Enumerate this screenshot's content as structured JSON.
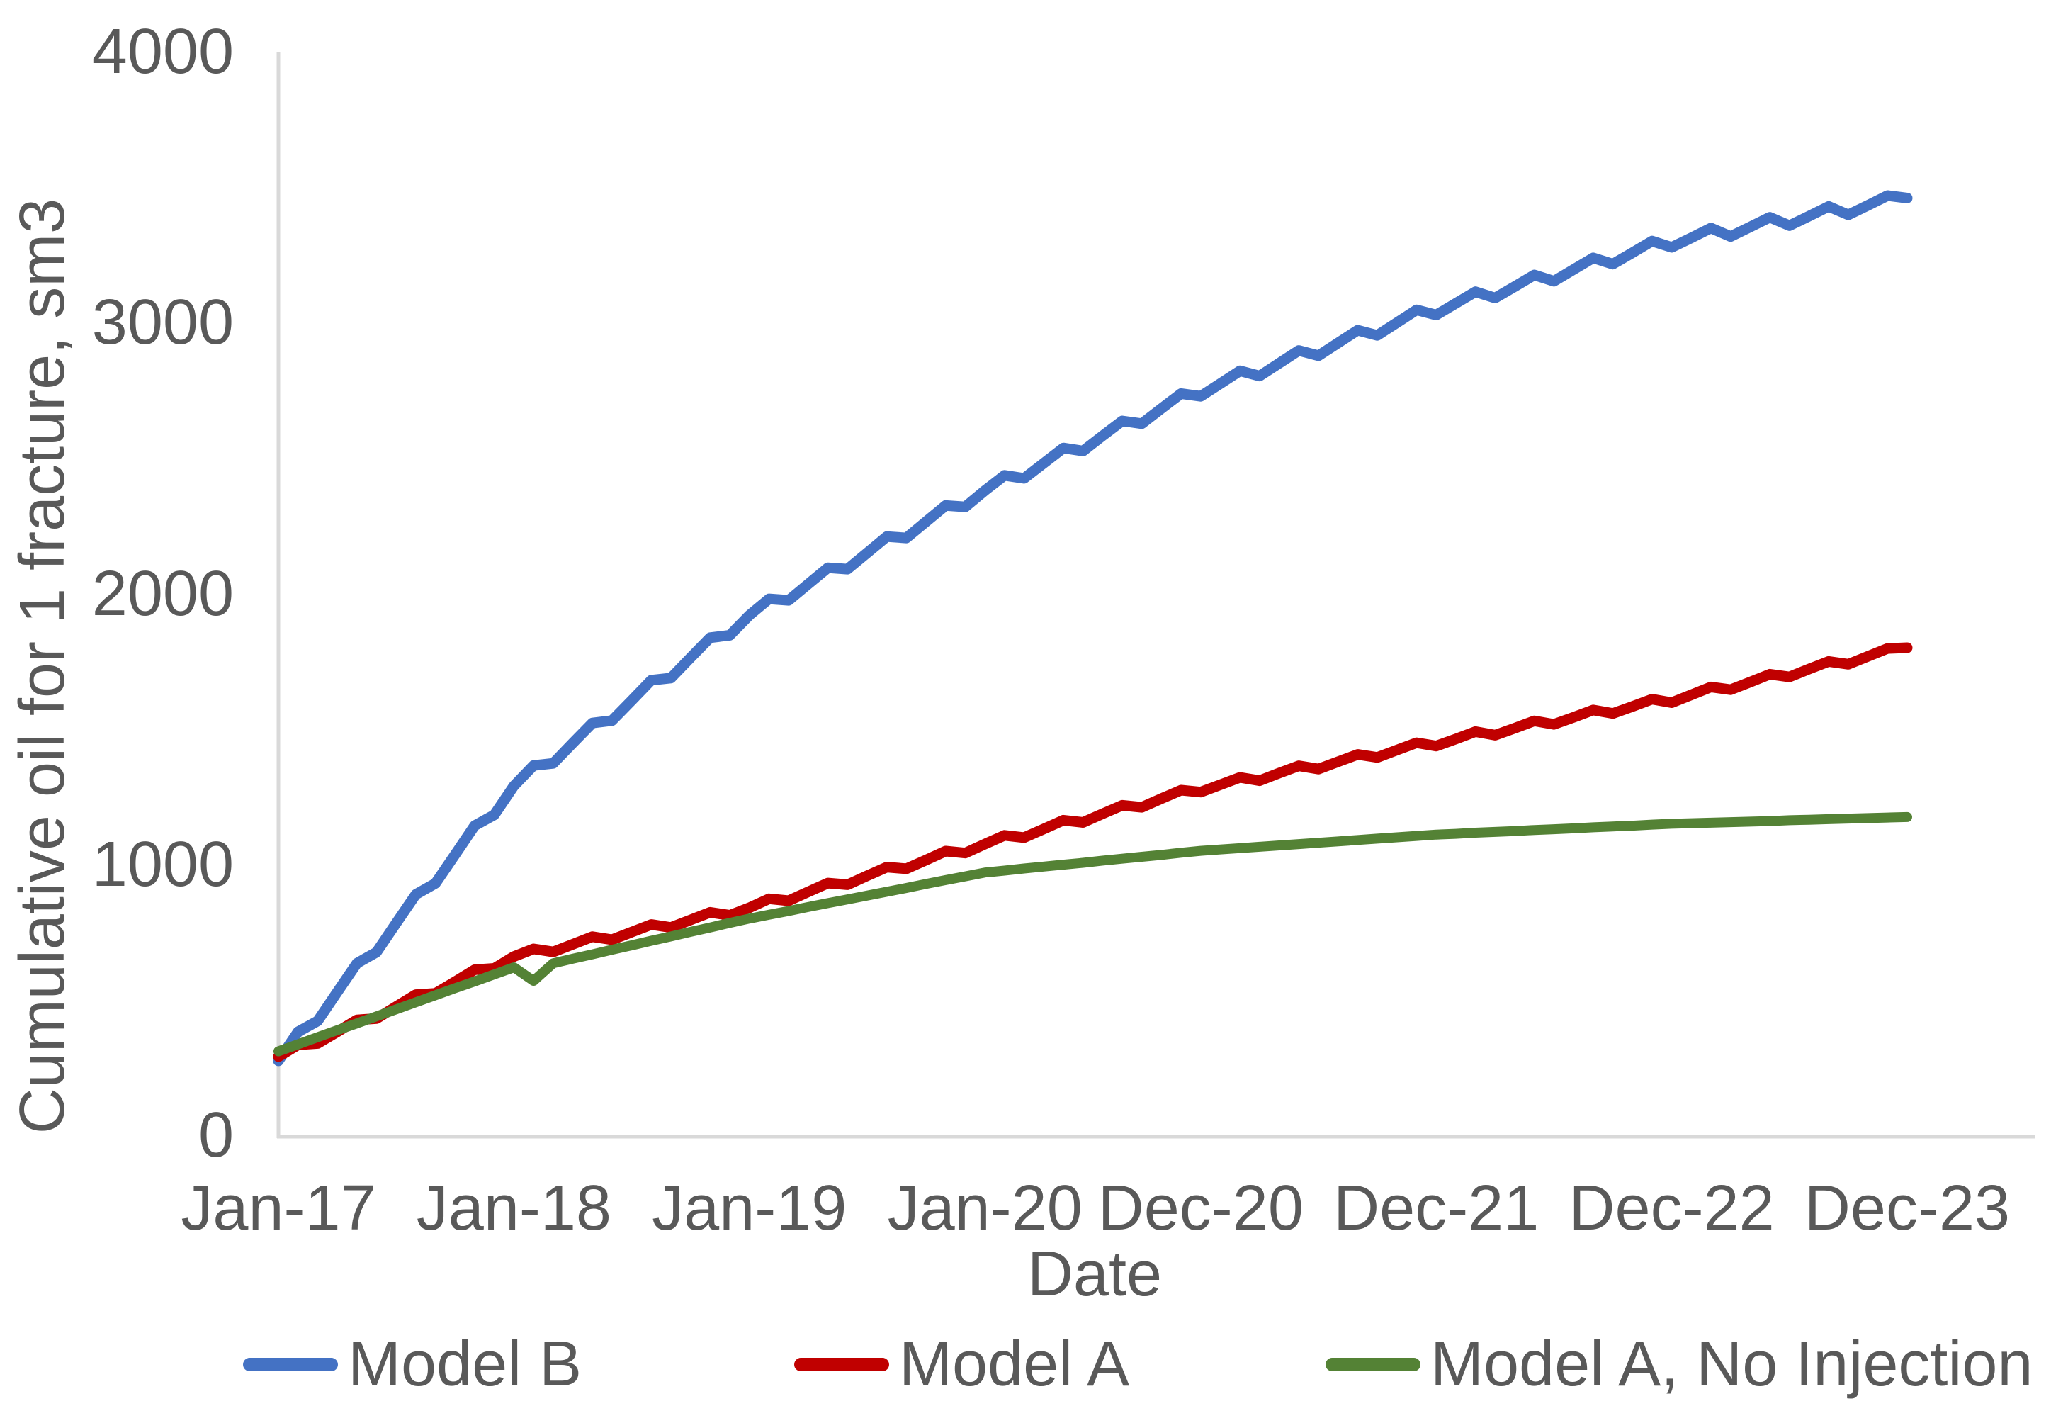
{
  "figure": {
    "y_axis_title": "Cumulative oil for 1 fracture, sm3",
    "x_axis_title": "Date",
    "text_color": "#595959",
    "axis_line_color": "#D9D9D9",
    "background_color": "#FFFFFF"
  },
  "chart_data": {
    "type": "line",
    "title": "",
    "xlabel": "Date",
    "ylabel": "Cumulative oil for 1 fracture, sm3",
    "x_unit": "monthly samples from Jan-2017 to Dec-2023",
    "ylim": [
      0,
      4000
    ],
    "y_ticks": [
      0,
      1000,
      2000,
      3000,
      4000
    ],
    "x_tick_labels": [
      "Jan-17",
      "Jan-18",
      "Jan-19",
      "Jan-20",
      "Dec-20",
      "Dec-21",
      "Dec-22",
      "Dec-23"
    ],
    "x_tick_month_index": [
      0,
      12,
      24,
      36,
      47,
      59,
      71,
      83
    ],
    "grid": false,
    "legend_position": "bottom",
    "series": [
      {
        "name": "Model B",
        "color": "#4472C4",
        "approx_values_at_ticks": [
          300,
          1290,
          1920,
          2380,
          2750,
          3050,
          3300,
          3460
        ],
        "values": [
          275,
          382,
          422,
          529,
          635,
          676,
          783,
          889,
          930,
          1036,
          1143,
          1183,
          1290,
          1365,
          1373,
          1448,
          1522,
          1531,
          1605,
          1680,
          1688,
          1763,
          1837,
          1846,
          1920,
          1980,
          1975,
          2035,
          2095,
          2090,
          2150,
          2210,
          2205,
          2265,
          2325,
          2320,
          2380,
          2436,
          2425,
          2481,
          2537,
          2526,
          2582,
          2637,
          2627,
          2683,
          2738,
          2728,
          2775,
          2822,
          2803,
          2850,
          2897,
          2878,
          2925,
          2972,
          2953,
          3000,
          3047,
          3028,
          3071,
          3114,
          3091,
          3133,
          3176,
          3153,
          3196,
          3239,
          3216,
          3258,
          3301,
          3278,
          3313,
          3349,
          3318,
          3353,
          3389,
          3358,
          3393,
          3429,
          3398,
          3433,
          3469,
          3460
        ]
      },
      {
        "name": "Model A",
        "color": "#C00000",
        "approx_values_at_ticks": [
          290,
          660,
          840,
          1075,
          1280,
          1450,
          1610,
          1800
        ],
        "values": [
          290,
          334,
          339,
          382,
          426,
          431,
          475,
          519,
          524,
          567,
          611,
          616,
          660,
          688,
          677,
          705,
          733,
          722,
          750,
          778,
          767,
          795,
          823,
          812,
          840,
          873,
          866,
          899,
          931,
          925,
          958,
          990,
          984,
          1016,
          1049,
          1042,
          1075,
          1107,
          1099,
          1131,
          1163,
          1155,
          1187,
          1218,
          1211,
          1243,
          1274,
          1267,
          1294,
          1321,
          1309,
          1337,
          1364,
          1352,
          1379,
          1406,
          1395,
          1422,
          1449,
          1437,
          1463,
          1490,
          1477,
          1503,
          1530,
          1517,
          1543,
          1570,
          1557,
          1583,
          1610,
          1597,
          1626,
          1655,
          1645,
          1673,
          1702,
          1692,
          1721,
          1749,
          1739,
          1768,
          1797,
          1800
        ]
      },
      {
        "name": "Model A, No Injection",
        "color": "#548235",
        "approx_values_at_ticks": [
          310,
          620,
          800,
          970,
          1050,
          1110,
          1150,
          1175
        ],
        "values": [
          310,
          336,
          362,
          388,
          413,
          439,
          465,
          491,
          517,
          543,
          568,
          594,
          620,
          570,
          635,
          652,
          668,
          685,
          701,
          718,
          734,
          751,
          767,
          784,
          800,
          814,
          828,
          843,
          857,
          871,
          885,
          899,
          913,
          928,
          942,
          956,
          970,
          977,
          985,
          992,
          999,
          1006,
          1014,
          1021,
          1028,
          1035,
          1043,
          1050,
          1055,
          1060,
          1065,
          1070,
          1075,
          1080,
          1085,
          1090,
          1095,
          1100,
          1105,
          1110,
          1113,
          1117,
          1120,
          1123,
          1127,
          1130,
          1133,
          1137,
          1140,
          1143,
          1147,
          1150,
          1152,
          1154,
          1156,
          1158,
          1160,
          1163,
          1165,
          1167,
          1169,
          1171,
          1173,
          1175
        ]
      }
    ]
  }
}
